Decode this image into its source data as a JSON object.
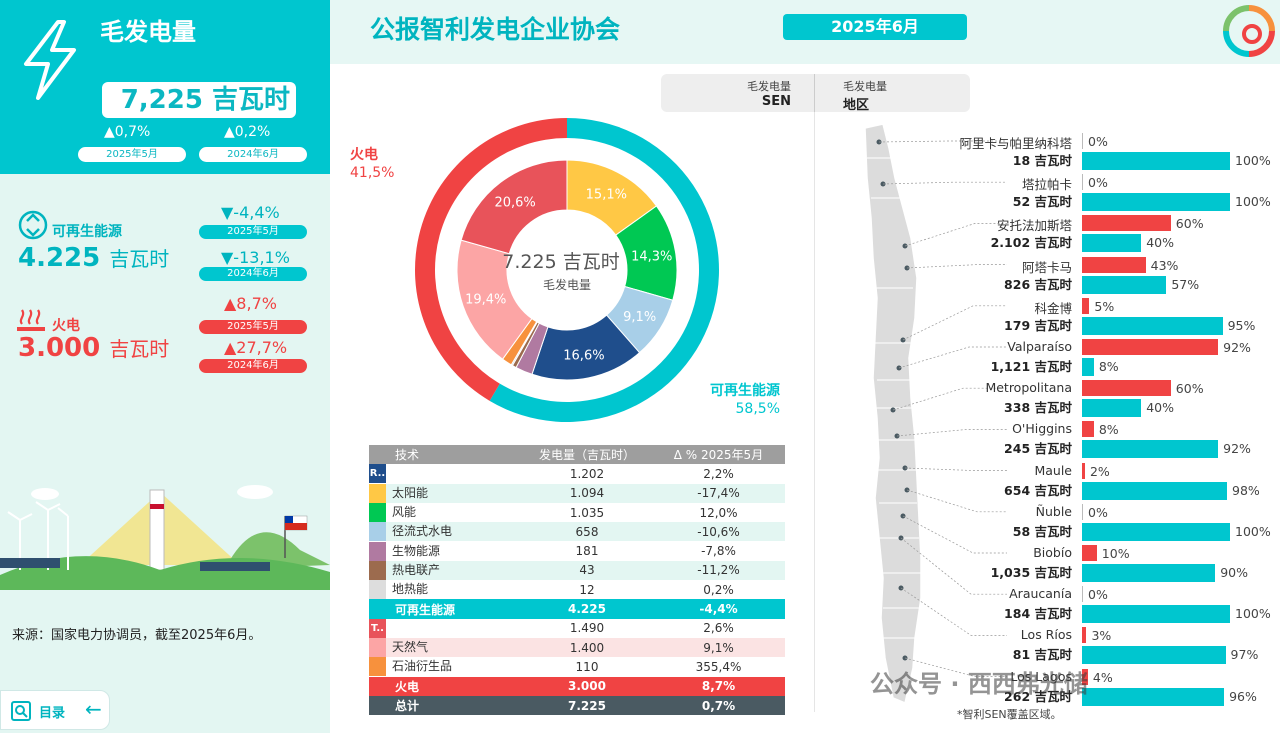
{
  "colors": {
    "teal": "#00c6cf",
    "red": "#f04343",
    "mint": "#e3f6f2"
  },
  "left_panel": {
    "title": "毛发电量",
    "total": "7,225 吉瓦时",
    "delta_1": "▲0,7%",
    "delta_1_period": "2025年5月",
    "delta_2": "▲0,2%",
    "delta_2_period": "2024年6月",
    "renewable": {
      "label": "可再生能源",
      "value": "4.225",
      "unit": "吉瓦时",
      "delta_1": "▼-4,4%",
      "delta_1_period": "2025年5月",
      "delta_2": "▼-13,1%",
      "delta_2_period": "2024年6月"
    },
    "thermal": {
      "label": "火电",
      "value": "3.000",
      "unit": "吉瓦时",
      "delta_1": "▲8,7%",
      "delta_1_period": "2025年5月",
      "delta_2": "▲27,7%",
      "delta_2_period": "2024年6月"
    },
    "source": "来源：国家电力协调员，截至2025年6月。",
    "toc_label": "目录"
  },
  "header": {
    "title": "公报智利发电企业协会",
    "date": "2025年6月"
  },
  "tabs": [
    {
      "line1": "毛发电量",
      "line2": "SEN"
    },
    {
      "line1": "毛发电量",
      "line2": "地区"
    }
  ],
  "chart_data": {
    "type": "pie",
    "center_value": "7.225 吉瓦时",
    "center_label": "毛发电量",
    "outer": [
      {
        "label": "火电",
        "value": 41.5,
        "value_label": "41,5%",
        "color": "#f04343"
      },
      {
        "label": "可再生能源",
        "value": 58.5,
        "value_label": "58,5%",
        "color": "#00c6cf"
      }
    ],
    "inner": [
      {
        "value": 15.1,
        "label": "15,1%",
        "color": "#ffc845"
      },
      {
        "value": 14.3,
        "label": "14,3%",
        "color": "#00c853"
      },
      {
        "value": 9.1,
        "label": "9,1%",
        "color": "#a8cfe8"
      },
      {
        "value": 16.6,
        "label": "16,6%",
        "color": "#1f4e8c"
      },
      {
        "value": 2.5,
        "label": "",
        "color": "#b07aa1"
      },
      {
        "value": 0.6,
        "label": "",
        "color": "#9c6b4e"
      },
      {
        "value": 0.2,
        "label": "",
        "color": "#c8c8c8"
      },
      {
        "value": 1.5,
        "label": "",
        "color": "#f7913d"
      },
      {
        "value": 19.4,
        "label": "19,4%",
        "color": "#fca5a5"
      },
      {
        "value": 20.6,
        "label": "20,6%",
        "color": "#e8535a"
      }
    ]
  },
  "table": {
    "headers": [
      "技术",
      "发电量（吉瓦时）",
      "Δ % 2025年5月"
    ],
    "rows": [
      {
        "name": "",
        "tag": "R..",
        "color": "#1f4e8c",
        "value": "1.202",
        "delta": "2,2%",
        "bg": "#ffffff"
      },
      {
        "name": "太阳能",
        "tag": "",
        "color": "#ffc845",
        "value": "1.094",
        "delta": "-17,4%",
        "bg": "#e3f6f2"
      },
      {
        "name": "风能",
        "tag": "",
        "color": "#00c853",
        "value": "1.035",
        "delta": "12,0%",
        "bg": "#ffffff"
      },
      {
        "name": "径流式水电",
        "tag": "",
        "color": "#a8cfe8",
        "value": "658",
        "delta": "-10,6%",
        "bg": "#e3f6f2"
      },
      {
        "name": "生物能源",
        "tag": "",
        "color": "#b07aa1",
        "value": "181",
        "delta": "-7,8%",
        "bg": "#ffffff"
      },
      {
        "name": "热电联产",
        "tag": "",
        "color": "#9c6b4e",
        "value": "43",
        "delta": "-11,2%",
        "bg": "#e3f6f2"
      },
      {
        "name": "地热能",
        "tag": "",
        "color": "#dddddd",
        "value": "12",
        "delta": "0,2%",
        "bg": "#ffffff"
      },
      {
        "name": "可再生能源",
        "tag": "",
        "color": "",
        "value": "4.225",
        "delta": "-4,4%",
        "bg": "#00c6cf",
        "total": true
      },
      {
        "name": "",
        "tag": "T..",
        "color": "#e8535a",
        "value": "1.490",
        "delta": "2,6%",
        "bg": "#ffffff"
      },
      {
        "name": "天然气",
        "tag": "",
        "color": "#fca5a5",
        "value": "1.400",
        "delta": "9,1%",
        "bg": "#fbe3e3"
      },
      {
        "name": "石油衍生品",
        "tag": "",
        "color": "#f7913d",
        "value": "110",
        "delta": "355,4%",
        "bg": "#ffffff"
      },
      {
        "name": "火电",
        "tag": "",
        "color": "",
        "value": "3.000",
        "delta": "8,7%",
        "bg": "#f04343",
        "total": true
      },
      {
        "name": "总计",
        "tag": "",
        "color": "",
        "value": "7.225",
        "delta": "0,7%",
        "bg": "#4a5a62",
        "total": true
      }
    ]
  },
  "regions": [
    {
      "name": "阿里卡与帕里纳科塔",
      "gwh": "18 吉瓦时",
      "thermal_pct": 0,
      "thermal_label": "0%",
      "renew_pct": 100,
      "renew_label": "100%"
    },
    {
      "name": "塔拉帕卡",
      "gwh": "52 吉瓦时",
      "thermal_pct": 0,
      "thermal_label": "0%",
      "renew_pct": 100,
      "renew_label": "100%"
    },
    {
      "name": "安托法加斯塔",
      "gwh": "2.102 吉瓦时",
      "thermal_pct": 60,
      "thermal_label": "60%",
      "renew_pct": 40,
      "renew_label": "40%"
    },
    {
      "name": "阿塔卡马",
      "gwh": "826 吉瓦时",
      "thermal_pct": 43,
      "thermal_label": "43%",
      "renew_pct": 57,
      "renew_label": "57%"
    },
    {
      "name": "科金博",
      "gwh": "179 吉瓦时",
      "thermal_pct": 5,
      "thermal_label": "5%",
      "renew_pct": 95,
      "renew_label": "95%"
    },
    {
      "name": "Valparaíso",
      "gwh": "1,121 吉瓦时",
      "thermal_pct": 92,
      "thermal_label": "92%",
      "renew_pct": 8,
      "renew_label": "8%"
    },
    {
      "name": "Metropolitana",
      "gwh": "338 吉瓦时",
      "thermal_pct": 60,
      "thermal_label": "60%",
      "renew_pct": 40,
      "renew_label": "40%"
    },
    {
      "name": "O'Higgins",
      "gwh": "245 吉瓦时",
      "thermal_pct": 8,
      "thermal_label": "8%",
      "renew_pct": 92,
      "renew_label": "92%"
    },
    {
      "name": "Maule",
      "gwh": "654 吉瓦时",
      "thermal_pct": 2,
      "thermal_label": "2%",
      "renew_pct": 98,
      "renew_label": "98%"
    },
    {
      "name": "Ñuble",
      "gwh": "58 吉瓦时",
      "thermal_pct": 0,
      "thermal_label": "0%",
      "renew_pct": 100,
      "renew_label": "100%"
    },
    {
      "name": "Biobío",
      "gwh": "1,035 吉瓦时",
      "thermal_pct": 10,
      "thermal_label": "10%",
      "renew_pct": 90,
      "renew_label": "90%"
    },
    {
      "name": "Araucanía",
      "gwh": "184 吉瓦时",
      "thermal_pct": 0,
      "thermal_label": "0%",
      "renew_pct": 100,
      "renew_label": "100%"
    },
    {
      "name": "Los Ríos",
      "gwh": "81 吉瓦时",
      "thermal_pct": 3,
      "thermal_label": "3%",
      "renew_pct": 97,
      "renew_label": "97%"
    },
    {
      "name": "Los Lagos",
      "gwh": "262 吉瓦时",
      "thermal_pct": 4,
      "thermal_label": "4%",
      "renew_pct": 96,
      "renew_label": "96%"
    }
  ],
  "footnote": "*智利SEN覆盖区域。",
  "watermark": "公众号 · 西西弗光储"
}
